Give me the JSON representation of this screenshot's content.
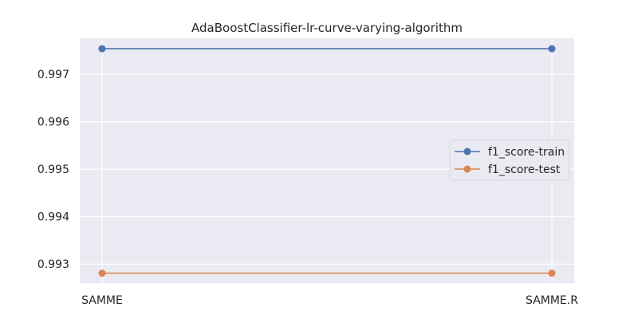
{
  "chart_data": {
    "type": "line",
    "title": "AdaBoostClassifier-lr-curve-varying-algorithm",
    "xlabel": "",
    "ylabel": "",
    "categories": [
      "SAMME",
      "SAMME.R"
    ],
    "series": [
      {
        "name": "f1_score-train",
        "values": [
          0.99754,
          0.99754
        ],
        "color": "#4c72b0"
      },
      {
        "name": "f1_score-test",
        "values": [
          0.99281,
          0.99281
        ],
        "color": "#dd8452"
      }
    ],
    "yticks": [
      0.993,
      0.994,
      0.995,
      0.996,
      0.997
    ],
    "ytick_labels": [
      "0.993",
      "0.994",
      "0.995",
      "0.996",
      "0.997"
    ],
    "ylim": [
      0.9926,
      0.99776
    ],
    "grid": true,
    "legend_position": "center-right",
    "background": "#eaeaf2"
  }
}
